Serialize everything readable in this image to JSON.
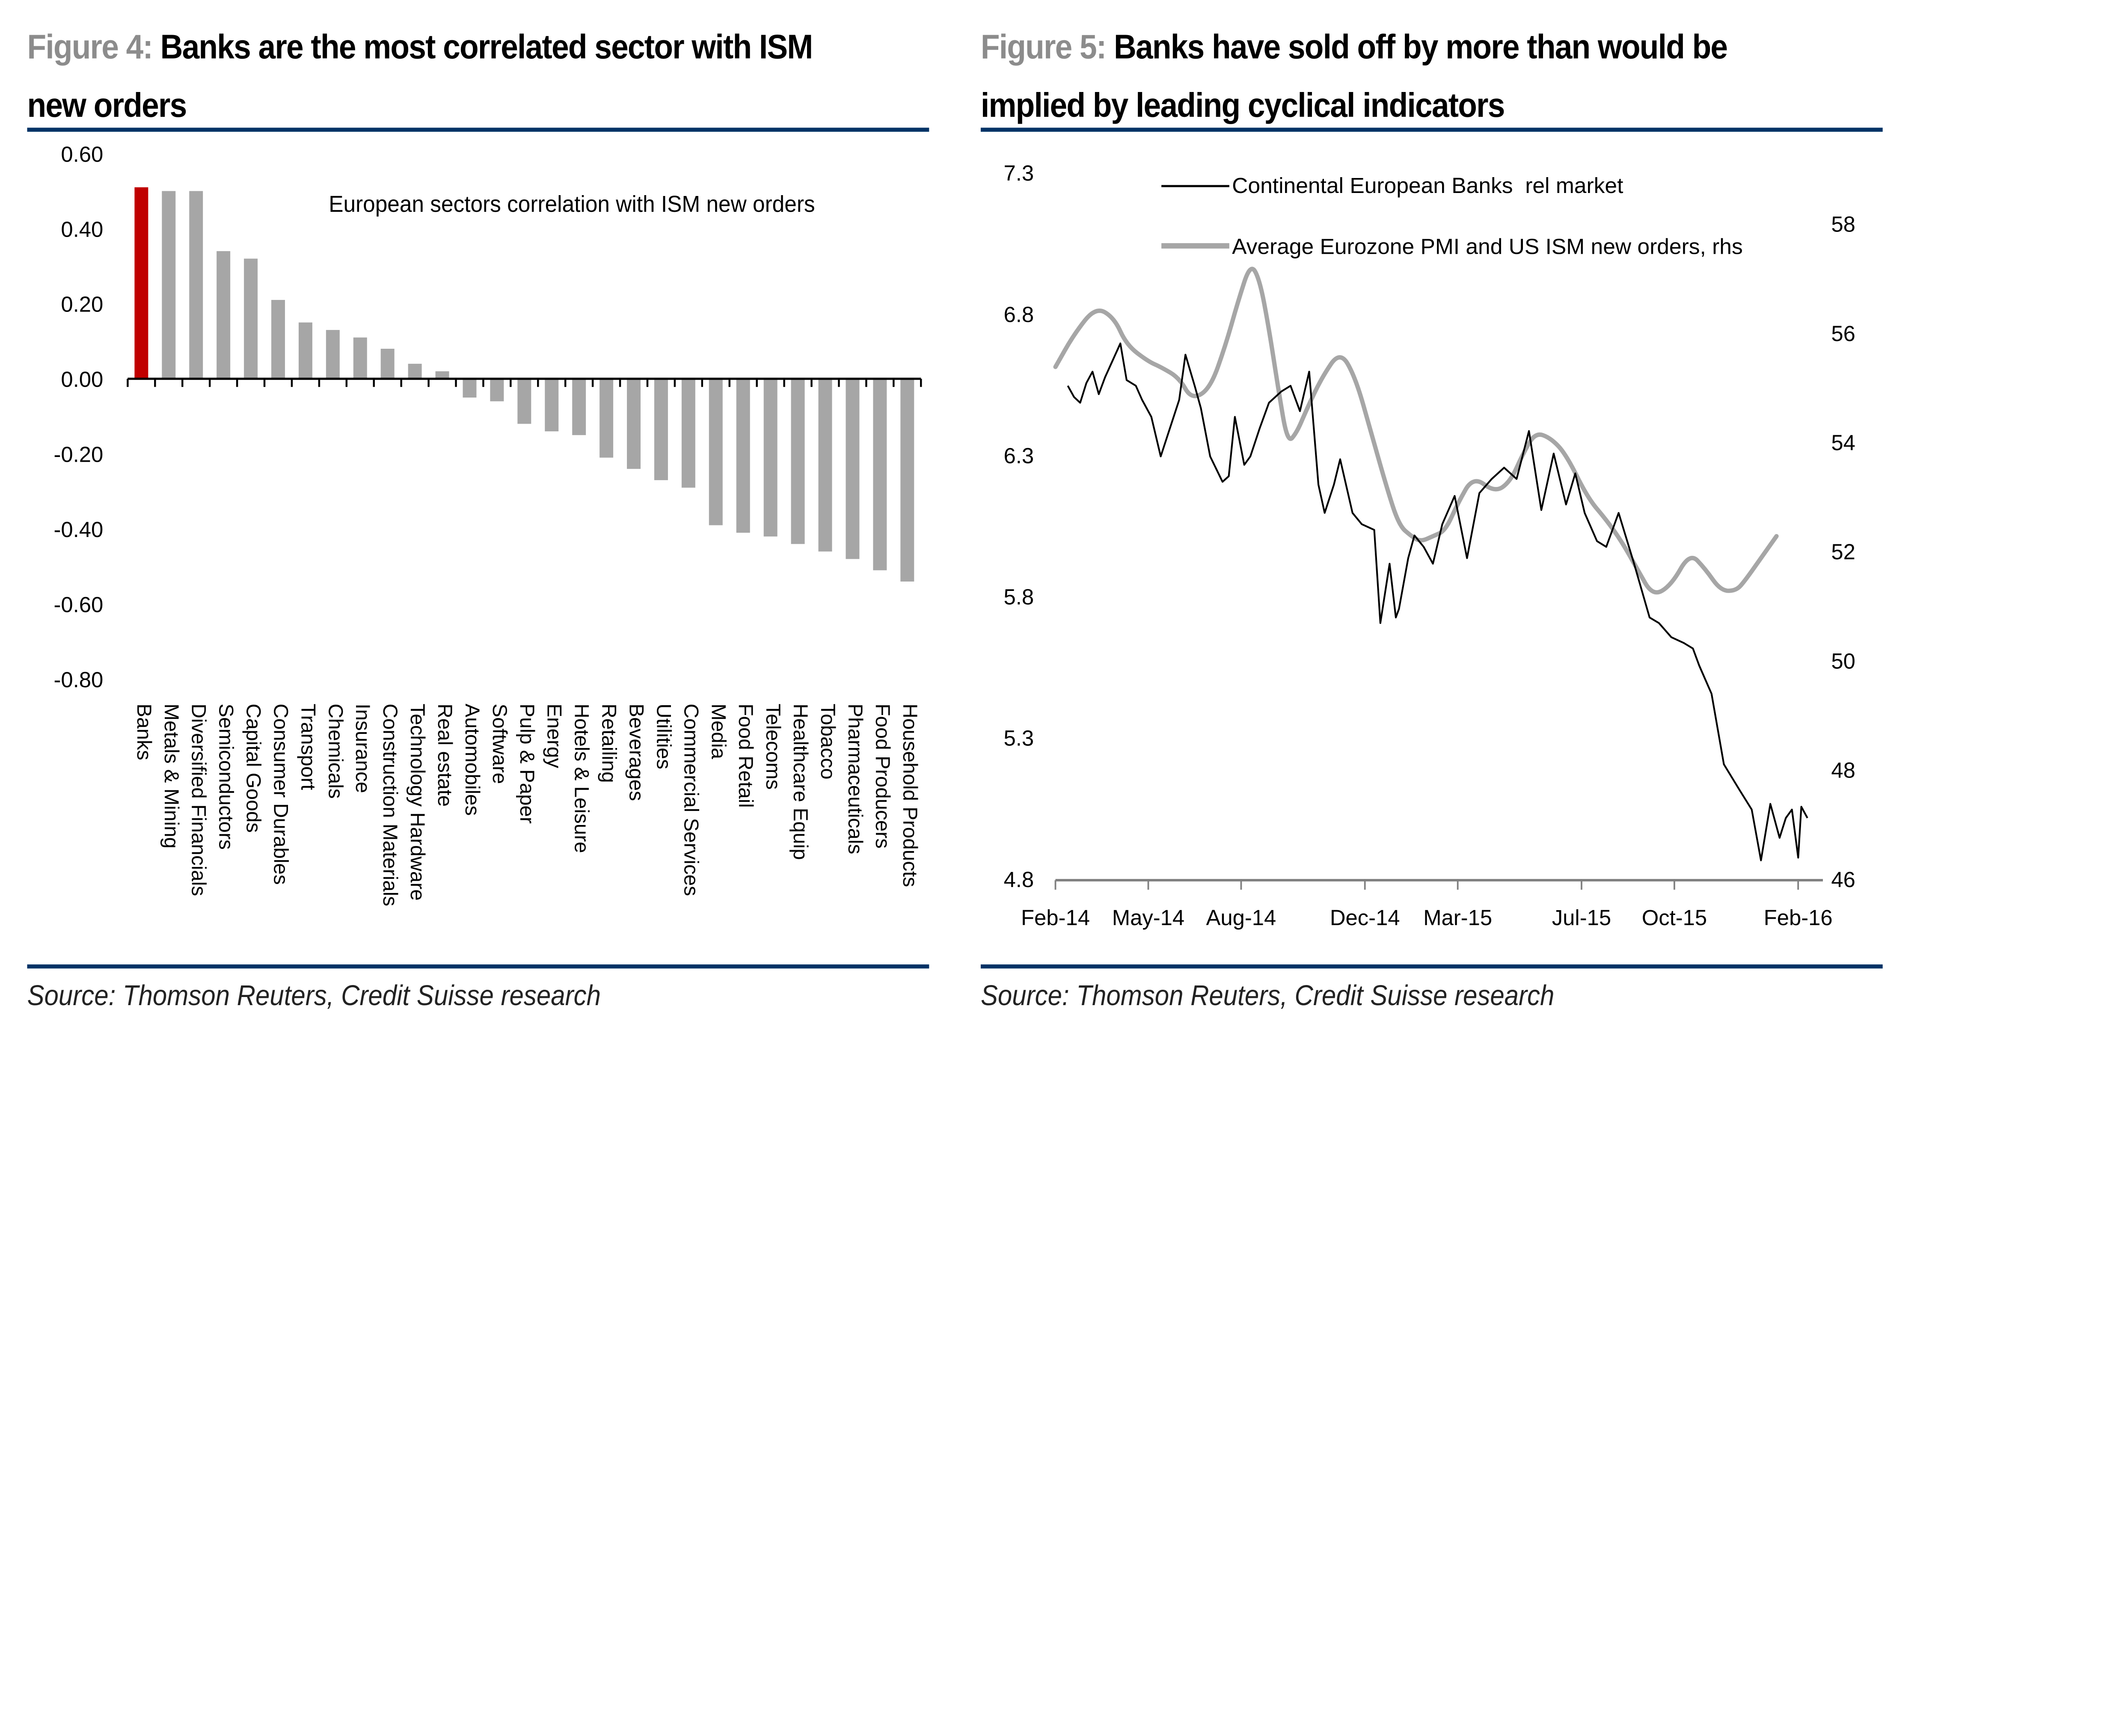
{
  "figures": [
    {
      "number_label": "Figure 4:",
      "title": "Banks are the most correlated sector with ISM new orders",
      "source": "Source: Thomson Reuters, Credit Suisse research"
    },
    {
      "number_label": "Figure 5:",
      "title": "Banks have sold off by more than would be implied by leading cyclical indicators",
      "source": "Source: Thomson Reuters, Credit Suisse research"
    }
  ],
  "colors": {
    "rule": "#003366",
    "highlight_bar": "#c00000",
    "bar": "#a6a6a6",
    "banks_line": "#000000",
    "pmi_line": "#a6a6a6",
    "figure_number": "#8c8c8c"
  },
  "chart_data": [
    {
      "type": "bar",
      "title": "European sectors correlation with ISM new orders",
      "xlabel": "",
      "ylabel": "",
      "ylim": [
        -0.8,
        0.6
      ],
      "yticks": [
        0.6,
        0.4,
        0.2,
        0.0,
        -0.2,
        -0.4,
        -0.6,
        -0.8
      ],
      "ytick_labels": [
        "0.60",
        "0.40",
        "0.20",
        "0.00",
        "-0.20",
        "-0.40",
        "-0.60",
        "-0.80"
      ],
      "grid": false,
      "highlight": "Banks",
      "categories": [
        "Banks",
        "Metals & Mining",
        "Diversified Financials",
        "Semiconductors",
        "Capital Goods",
        "Consumer Durables",
        "Transport",
        "Chemicals",
        "Insurance",
        "Construction Materials",
        "Technology Hardware",
        "Real estate",
        "Automobiles",
        "Software",
        "Pulp & Paper",
        "Energy",
        "Hotels & Leisure",
        "Retailing",
        "Beverages",
        "Utilities",
        "Commercial Services",
        "Media",
        "Food Retail",
        "Telecoms",
        "Healthcare Equip",
        "Tobacco",
        "Pharmaceuticals",
        "Food Producers",
        "Household Products"
      ],
      "values": [
        0.51,
        0.5,
        0.5,
        0.34,
        0.32,
        0.21,
        0.15,
        0.13,
        0.11,
        0.08,
        0.04,
        0.02,
        -0.05,
        -0.06,
        -0.12,
        -0.14,
        -0.15,
        -0.21,
        -0.24,
        -0.27,
        -0.29,
        -0.39,
        -0.41,
        -0.42,
        -0.44,
        -0.46,
        -0.48,
        -0.51,
        -0.54
      ]
    },
    {
      "type": "line",
      "title": "",
      "xlabel": "",
      "ylabel": "",
      "legend_position": "top",
      "x_tick_labels": [
        "Feb-14",
        "May-14",
        "Aug-14",
        "Dec-14",
        "Mar-15",
        "Jul-15",
        "Oct-15",
        "Feb-16"
      ],
      "x_tick_months": [
        0,
        3,
        6,
        10,
        13,
        17,
        20,
        24
      ],
      "x_range_months": [
        0,
        24.8
      ],
      "y_left": {
        "lim": [
          4.8,
          7.3
        ],
        "ticks": [
          7.3,
          6.8,
          6.3,
          5.8,
          5.3,
          4.8
        ],
        "labels": [
          "7.3",
          "6.8",
          "6.3",
          "5.8",
          "5.3",
          "4.8"
        ]
      },
      "y_right": {
        "lim": [
          46,
          59
        ],
        "ticks": [
          58,
          56,
          54,
          52,
          50,
          48,
          46
        ],
        "labels": [
          "58",
          "56",
          "54",
          "52",
          "50",
          "48",
          "46"
        ]
      },
      "series": [
        {
          "name": "Continental European Banks  rel market",
          "axis": "left",
          "x_months": [
            0.4,
            0.6,
            0.8,
            1.0,
            1.2,
            1.4,
            1.6,
            2.1,
            2.3,
            2.6,
            2.8,
            3.1,
            3.4,
            3.7,
            4.0,
            4.2,
            4.5,
            4.7,
            5.0,
            5.4,
            5.6,
            5.8,
            6.1,
            6.3,
            6.6,
            6.9,
            7.3,
            7.6,
            7.9,
            8.2,
            8.5,
            8.7,
            9.0,
            9.2,
            9.6,
            9.9,
            10.3,
            10.5,
            10.8,
            11.0,
            11.1,
            11.4,
            11.6,
            11.9,
            12.2,
            12.5,
            12.9,
            13.3,
            13.7,
            14.1,
            14.5,
            14.9,
            15.3,
            15.7,
            16.1,
            16.5,
            16.8,
            17.1,
            17.5,
            17.8,
            18.2,
            18.7,
            19.2,
            19.5,
            19.9,
            20.3,
            20.6,
            20.8,
            21.2,
            21.6,
            22.1,
            22.5,
            22.8,
            23.1,
            23.4,
            23.6,
            23.8,
            24.0,
            24.1,
            24.3
          ],
          "values": [
            6.55,
            6.51,
            6.49,
            6.56,
            6.6,
            6.52,
            6.58,
            6.7,
            6.57,
            6.55,
            6.5,
            6.44,
            6.3,
            6.4,
            6.5,
            6.66,
            6.55,
            6.47,
            6.3,
            6.21,
            6.23,
            6.44,
            6.27,
            6.3,
            6.4,
            6.49,
            6.53,
            6.55,
            6.46,
            6.6,
            6.2,
            6.1,
            6.2,
            6.29,
            6.1,
            6.06,
            6.04,
            5.71,
            5.92,
            5.73,
            5.76,
            5.94,
            6.02,
            5.98,
            5.92,
            6.06,
            6.16,
            5.94,
            6.17,
            6.22,
            6.26,
            6.22,
            6.39,
            6.11,
            6.31,
            6.13,
            6.24,
            6.1,
            6.0,
            5.98,
            6.1,
            5.92,
            5.73,
            5.71,
            5.66,
            5.64,
            5.62,
            5.56,
            5.46,
            5.21,
            5.12,
            5.05,
            4.87,
            5.07,
            4.95,
            5.02,
            5.05,
            4.88,
            5.06,
            5.02
          ]
        },
        {
          "name": "Average Eurozone PMI and US ISM new orders, rhs",
          "axis": "right",
          "x_months": [
            0.0,
            0.6,
            1.3,
            1.9,
            2.3,
            3.0,
            3.4,
            4.0,
            4.4,
            5.0,
            5.5,
            5.9,
            6.3,
            6.6,
            6.9,
            7.2,
            7.5,
            7.8,
            8.1,
            8.6,
            9.2,
            9.7,
            10.2,
            10.7,
            11.1,
            11.5,
            11.8,
            12.2,
            12.6,
            13.0,
            13.5,
            14.2,
            14.7,
            15.1,
            15.5,
            16.0,
            16.5,
            17.2,
            17.8,
            18.3,
            18.8,
            19.3,
            19.9,
            20.5,
            21.0,
            21.5,
            22.0,
            22.3,
            22.8,
            23.3
          ],
          "values": [
            55.4,
            56.0,
            56.5,
            56.3,
            55.8,
            55.5,
            55.4,
            55.2,
            54.8,
            55.0,
            55.8,
            56.6,
            57.3,
            57.0,
            56.1,
            55.0,
            54.0,
            54.2,
            54.6,
            55.2,
            55.7,
            55.2,
            54.2,
            53.2,
            52.5,
            52.3,
            52.2,
            52.3,
            52.4,
            52.9,
            53.4,
            53.1,
            53.3,
            53.8,
            54.2,
            54.1,
            53.8,
            53.0,
            52.6,
            52.2,
            51.7,
            51.2,
            51.4,
            52.0,
            51.7,
            51.3,
            51.3,
            51.5,
            51.9,
            52.3
          ]
        }
      ]
    }
  ]
}
